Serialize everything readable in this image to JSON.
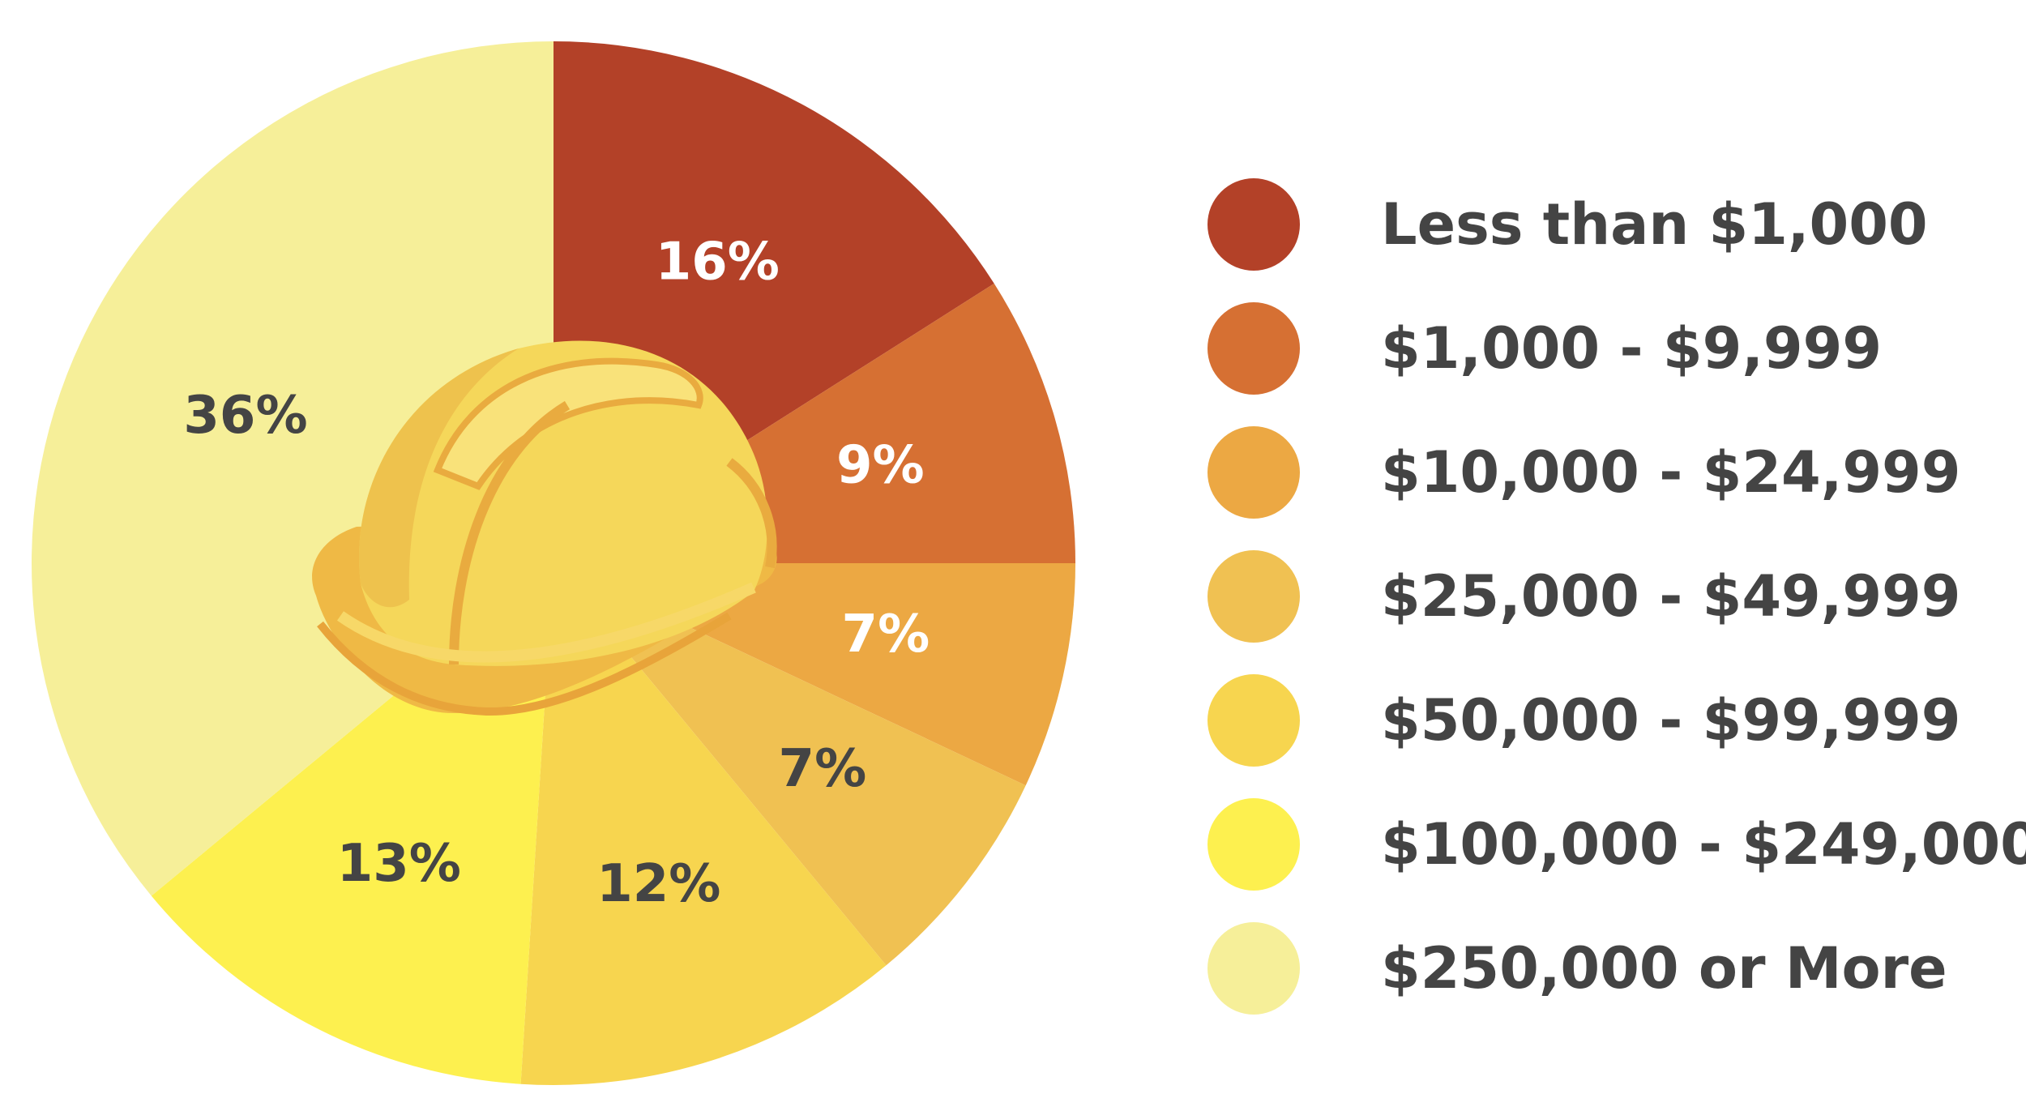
{
  "chart_data": {
    "type": "pie",
    "title": "",
    "categories": [
      "Less than $1,000",
      "$1,000 - $9,999",
      "$10,000 - $24,999",
      "$25,000 - $49,999",
      "$50,000 - $99,999",
      "$100,000 - $249,000",
      "$250,000 or More"
    ],
    "values": [
      16,
      9,
      7,
      7,
      12,
      13,
      36
    ],
    "value_labels": [
      "16%",
      "9%",
      "7%",
      "7%",
      "12%",
      "13%",
      "36%"
    ],
    "colors": [
      "#b34128",
      "#d67033",
      "#eca843",
      "#f0c152",
      "#f7d54f",
      "#fdf04f",
      "#f6ef99"
    ],
    "label_colors": [
      "#ffffff",
      "#ffffff",
      "#ffffff",
      "#444444",
      "#444444",
      "#444444",
      "#444444"
    ],
    "legend_position": "right",
    "start": "12 o'clock, clockwise",
    "center_icon": "hard-hat-icon"
  }
}
